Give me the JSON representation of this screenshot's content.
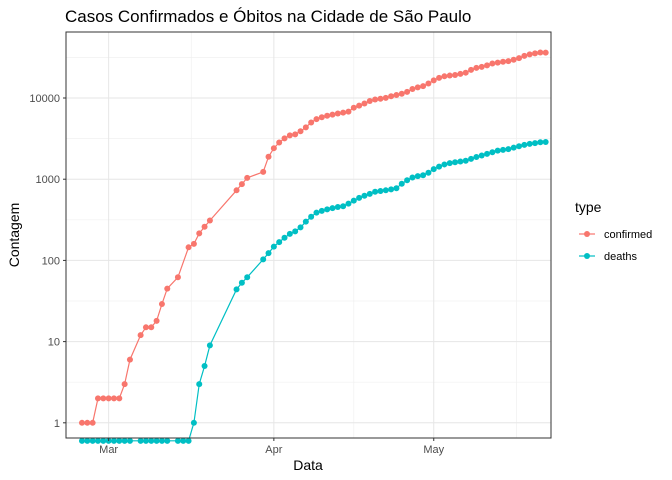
{
  "chart_data": {
    "type": "line",
    "title": "Casos Confirmados e Óbitos na Cidade de São Paulo",
    "xlabel": "Data",
    "ylabel": "Contagem",
    "y_scale": "log10",
    "xlim": [
      "2020-02-22",
      "2020-05-23"
    ],
    "ylim": [
      0.65,
      65000
    ],
    "x_ticks": [
      {
        "date": "2020-03-01",
        "label": "Mar"
      },
      {
        "date": "2020-04-01",
        "label": "Apr"
      },
      {
        "date": "2020-05-01",
        "label": "May"
      }
    ],
    "y_ticks": [
      {
        "value": 1,
        "label": "1"
      },
      {
        "value": 10,
        "label": "10"
      },
      {
        "value": 100,
        "label": "100"
      },
      {
        "value": 1000,
        "label": "1000"
      },
      {
        "value": 10000,
        "label": "10000"
      }
    ],
    "grid": true,
    "legend": {
      "title": "type",
      "position": "right"
    },
    "series": [
      {
        "name": "confirmed",
        "color": "#F8766D",
        "points": [
          [
            "2020-02-25",
            1
          ],
          [
            "2020-02-26",
            1
          ],
          [
            "2020-02-27",
            1
          ],
          [
            "2020-02-28",
            2
          ],
          [
            "2020-02-29",
            2
          ],
          [
            "2020-03-01",
            2
          ],
          [
            "2020-03-02",
            2
          ],
          [
            "2020-03-03",
            2
          ],
          [
            "2020-03-04",
            3
          ],
          [
            "2020-03-05",
            6
          ],
          [
            "2020-03-07",
            12
          ],
          [
            "2020-03-08",
            15
          ],
          [
            "2020-03-09",
            15
          ],
          [
            "2020-03-10",
            18
          ],
          [
            "2020-03-11",
            29
          ],
          [
            "2020-03-12",
            45
          ],
          [
            "2020-03-14",
            62
          ],
          [
            "2020-03-16",
            145
          ],
          [
            "2020-03-17",
            160
          ],
          [
            "2020-03-18",
            215
          ],
          [
            "2020-03-19",
            260
          ],
          [
            "2020-03-20",
            310
          ],
          [
            "2020-03-25",
            730
          ],
          [
            "2020-03-26",
            870
          ],
          [
            "2020-03-27",
            1040
          ],
          [
            "2020-03-30",
            1230
          ],
          [
            "2020-03-31",
            1890
          ],
          [
            "2020-04-01",
            2410
          ],
          [
            "2020-04-02",
            2830
          ],
          [
            "2020-04-03",
            3180
          ],
          [
            "2020-04-04",
            3470
          ],
          [
            "2020-04-05",
            3570
          ],
          [
            "2020-04-06",
            3900
          ],
          [
            "2020-04-07",
            4350
          ],
          [
            "2020-04-08",
            5000
          ],
          [
            "2020-04-09",
            5500
          ],
          [
            "2020-04-10",
            5800
          ],
          [
            "2020-04-11",
            6050
          ],
          [
            "2020-04-12",
            6250
          ],
          [
            "2020-04-13",
            6450
          ],
          [
            "2020-04-14",
            6600
          ],
          [
            "2020-04-15",
            6800
          ],
          [
            "2020-04-16",
            7600
          ],
          [
            "2020-04-17",
            8050
          ],
          [
            "2020-04-18",
            8550
          ],
          [
            "2020-04-19",
            9200
          ],
          [
            "2020-04-20",
            9600
          ],
          [
            "2020-04-21",
            9800
          ],
          [
            "2020-04-22",
            10050
          ],
          [
            "2020-04-23",
            10500
          ],
          [
            "2020-04-24",
            10900
          ],
          [
            "2020-04-25",
            11300
          ],
          [
            "2020-04-26",
            11900
          ],
          [
            "2020-04-27",
            12900
          ],
          [
            "2020-04-28",
            13500
          ],
          [
            "2020-04-29",
            14000
          ],
          [
            "2020-04-30",
            15100
          ],
          [
            "2020-05-01",
            16500
          ],
          [
            "2020-05-02",
            17700
          ],
          [
            "2020-05-03",
            18500
          ],
          [
            "2020-05-04",
            18900
          ],
          [
            "2020-05-05",
            19200
          ],
          [
            "2020-05-06",
            19800
          ],
          [
            "2020-05-07",
            20500
          ],
          [
            "2020-05-08",
            22200
          ],
          [
            "2020-05-09",
            23500
          ],
          [
            "2020-05-10",
            24200
          ],
          [
            "2020-05-11",
            25200
          ],
          [
            "2020-05-12",
            26600
          ],
          [
            "2020-05-13",
            27300
          ],
          [
            "2020-05-14",
            28000
          ],
          [
            "2020-05-15",
            28500
          ],
          [
            "2020-05-16",
            29600
          ],
          [
            "2020-05-17",
            31000
          ],
          [
            "2020-05-18",
            33000
          ],
          [
            "2020-05-19",
            34500
          ],
          [
            "2020-05-20",
            35500
          ],
          [
            "2020-05-21",
            36300
          ],
          [
            "2020-05-22",
            36200
          ]
        ]
      },
      {
        "name": "deaths",
        "color": "#00BFC4",
        "points": [
          [
            "2020-02-25",
            0.6
          ],
          [
            "2020-02-26",
            0.6
          ],
          [
            "2020-02-27",
            0.6
          ],
          [
            "2020-02-28",
            0.6
          ],
          [
            "2020-02-29",
            0.6
          ],
          [
            "2020-03-01",
            0.6
          ],
          [
            "2020-03-02",
            0.6
          ],
          [
            "2020-03-03",
            0.6
          ],
          [
            "2020-03-04",
            0.6
          ],
          [
            "2020-03-05",
            0.6
          ],
          [
            "2020-03-07",
            0.6
          ],
          [
            "2020-03-08",
            0.6
          ],
          [
            "2020-03-09",
            0.6
          ],
          [
            "2020-03-10",
            0.6
          ],
          [
            "2020-03-11",
            0.6
          ],
          [
            "2020-03-12",
            0.6
          ],
          [
            "2020-03-14",
            0.6
          ],
          [
            "2020-03-15",
            0.6
          ],
          [
            "2020-03-16",
            0.6
          ],
          [
            "2020-03-17",
            1
          ],
          [
            "2020-03-18",
            3
          ],
          [
            "2020-03-19",
            5
          ],
          [
            "2020-03-20",
            9
          ],
          [
            "2020-03-25",
            44
          ],
          [
            "2020-03-26",
            53
          ],
          [
            "2020-03-27",
            62
          ],
          [
            "2020-03-30",
            103
          ],
          [
            "2020-03-31",
            123
          ],
          [
            "2020-04-01",
            148
          ],
          [
            "2020-04-02",
            168
          ],
          [
            "2020-04-03",
            190
          ],
          [
            "2020-04-04",
            212
          ],
          [
            "2020-04-05",
            228
          ],
          [
            "2020-04-06",
            255
          ],
          [
            "2020-04-07",
            300
          ],
          [
            "2020-04-08",
            345
          ],
          [
            "2020-04-09",
            388
          ],
          [
            "2020-04-10",
            408
          ],
          [
            "2020-04-11",
            425
          ],
          [
            "2020-04-12",
            440
          ],
          [
            "2020-04-13",
            455
          ],
          [
            "2020-04-14",
            465
          ],
          [
            "2020-04-15",
            500
          ],
          [
            "2020-04-16",
            545
          ],
          [
            "2020-04-17",
            590
          ],
          [
            "2020-04-18",
            625
          ],
          [
            "2020-04-19",
            660
          ],
          [
            "2020-04-20",
            700
          ],
          [
            "2020-04-21",
            715
          ],
          [
            "2020-04-22",
            730
          ],
          [
            "2020-04-23",
            750
          ],
          [
            "2020-04-24",
            775
          ],
          [
            "2020-04-25",
            880
          ],
          [
            "2020-04-26",
            970
          ],
          [
            "2020-04-27",
            1050
          ],
          [
            "2020-04-28",
            1090
          ],
          [
            "2020-04-29",
            1120
          ],
          [
            "2020-04-30",
            1200
          ],
          [
            "2020-05-01",
            1330
          ],
          [
            "2020-05-02",
            1430
          ],
          [
            "2020-05-03",
            1520
          ],
          [
            "2020-05-04",
            1580
          ],
          [
            "2020-05-05",
            1620
          ],
          [
            "2020-05-06",
            1650
          ],
          [
            "2020-05-07",
            1690
          ],
          [
            "2020-05-08",
            1780
          ],
          [
            "2020-05-09",
            1880
          ],
          [
            "2020-05-10",
            1960
          ],
          [
            "2020-05-11",
            2050
          ],
          [
            "2020-05-12",
            2150
          ],
          [
            "2020-05-13",
            2250
          ],
          [
            "2020-05-14",
            2300
          ],
          [
            "2020-05-15",
            2350
          ],
          [
            "2020-05-16",
            2450
          ],
          [
            "2020-05-17",
            2550
          ],
          [
            "2020-05-18",
            2650
          ],
          [
            "2020-05-19",
            2720
          ],
          [
            "2020-05-20",
            2780
          ],
          [
            "2020-05-21",
            2850
          ],
          [
            "2020-05-22",
            2870
          ]
        ]
      }
    ]
  }
}
